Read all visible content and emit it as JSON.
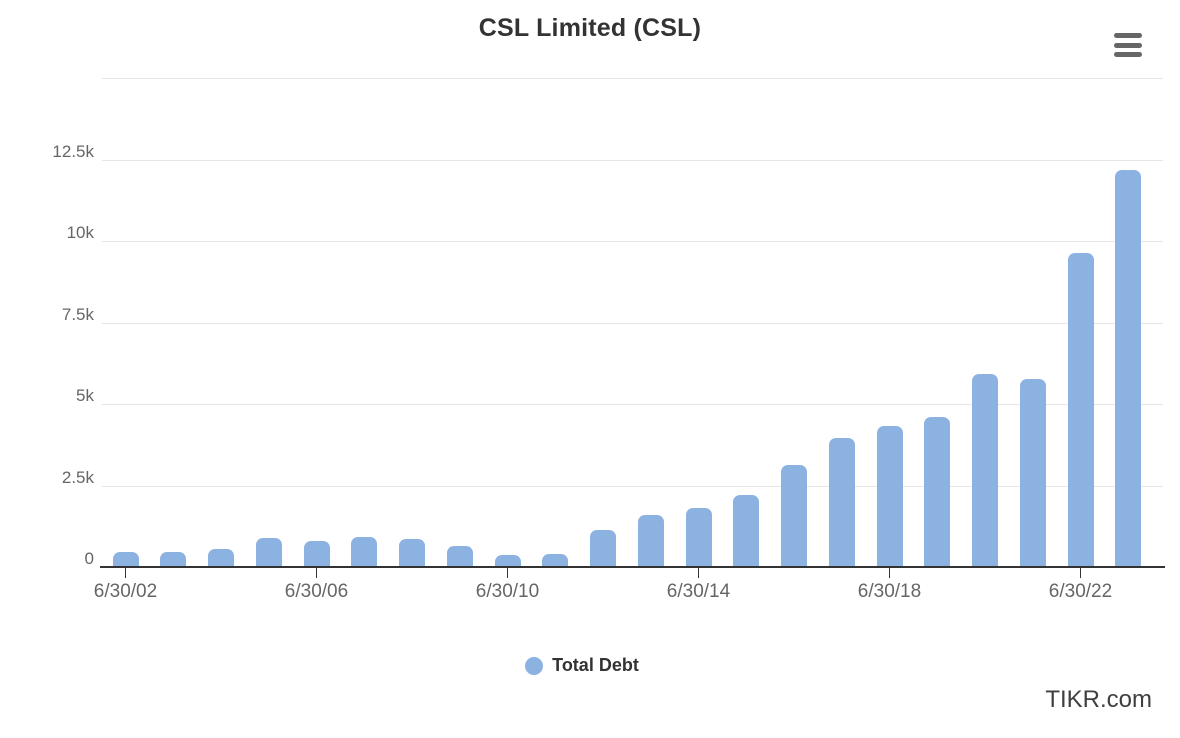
{
  "header": {
    "title": "CSL Limited (CSL)"
  },
  "chart_data": {
    "type": "bar",
    "title": "CSL Limited (CSL)",
    "categories": [
      "6/30/02",
      "6/30/03",
      "6/30/04",
      "6/30/05",
      "6/30/06",
      "6/30/07",
      "6/30/08",
      "6/30/09",
      "6/30/10",
      "6/30/11",
      "6/30/12",
      "6/30/13",
      "6/30/14",
      "6/30/15",
      "6/30/16",
      "6/30/17",
      "6/30/18",
      "6/30/19",
      "6/30/20",
      "6/30/21",
      "6/30/22",
      "6/30/23"
    ],
    "series": [
      {
        "name": "Total Debt",
        "color": "#8cb2e2",
        "values": [
          460,
          470,
          560,
          900,
          800,
          930,
          850,
          640,
          370,
          400,
          1150,
          1580,
          1810,
          2220,
          3120,
          3950,
          4340,
          4590,
          5930,
          5780,
          9630,
          12170
        ]
      }
    ],
    "xlabel": "",
    "ylabel": "",
    "ylim": [
      0,
      15000
    ],
    "y_gridline_step": 2500,
    "grid": true,
    "x_tick_labels": [
      "6/30/02",
      "6/30/06",
      "6/30/10",
      "6/30/14",
      "6/30/18",
      "6/30/22"
    ],
    "x_tick_indices": [
      0,
      4,
      8,
      12,
      16,
      20
    ],
    "y_tick_labels": [
      "0",
      "2.5k",
      "5k",
      "7.5k",
      "10k",
      "12.5k"
    ],
    "legend_position": "bottom-center"
  },
  "legend": {
    "items": [
      {
        "label": "Total Debt",
        "color": "#8cb2e2"
      }
    ]
  },
  "footer": {
    "watermark": "TIKR.com"
  },
  "colors": {
    "bar": "#8cb2e2",
    "axis": "#333333",
    "gridline": "#e6e6e6",
    "tick_label": "#666666",
    "title": "#333333",
    "menu_icon": "#666666",
    "background": "#ffffff"
  }
}
